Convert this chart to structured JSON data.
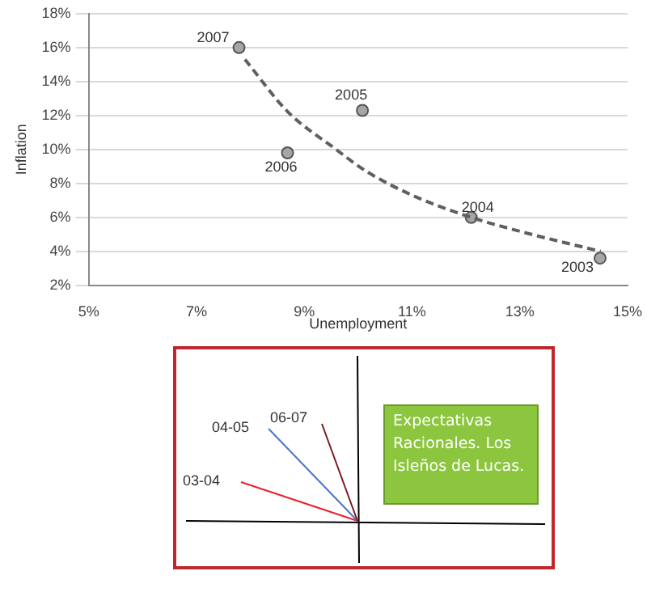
{
  "chart_data": [
    {
      "type": "scatter",
      "xlabel": "Unemployment",
      "ylabel": "Inflation",
      "series": [
        {
          "color": "#a6a6a6",
          "x": [
            7.79,
            8.69,
            10.08,
            12.1,
            14.49
          ],
          "values": [
            16.0,
            9.8,
            12.3,
            6.0,
            3.6
          ],
          "marker": "circle"
        },
        {
          "type": "line",
          "color": "#5f5f5f",
          "line_style": "dashed",
          "marker": "none",
          "x": [
            7.9,
            8.7,
            9.55,
            10.16,
            11.08,
            12.1,
            13.1,
            14.5
          ],
          "values": [
            15.3,
            12.2,
            10.1,
            8.7,
            7.2,
            6.0,
            5.1,
            4.0
          ]
        }
      ],
      "xlim": [
        5,
        15
      ],
      "xticks": [
        {
          "value": 5,
          "label": "5%"
        },
        {
          "value": 7,
          "label": "7%"
        },
        {
          "value": 9,
          "label": "9%"
        },
        {
          "value": 11,
          "label": "11%"
        },
        {
          "value": 13,
          "label": "13%"
        },
        {
          "value": 15,
          "label": "15%"
        }
      ],
      "ylim": [
        2,
        18
      ],
      "yticks": [
        {
          "value": 2,
          "label": "2%"
        },
        {
          "value": 4,
          "label": "4%"
        },
        {
          "value": 6,
          "label": "6%"
        },
        {
          "value": 8,
          "label": "8%"
        },
        {
          "value": 10,
          "label": "10%"
        },
        {
          "value": 12,
          "label": "12%"
        },
        {
          "value": 14,
          "label": "14%"
        },
        {
          "value": 16,
          "label": "16%"
        },
        {
          "value": 18,
          "label": "18%"
        }
      ],
      "grid": "y",
      "legend": false,
      "annotations": [
        {
          "text": "2007",
          "x": 7.79,
          "y": 16.0
        },
        {
          "text": "2006",
          "x": 8.69,
          "y": 9.8
        },
        {
          "text": "2005",
          "x": 10.08,
          "y": 12.3
        },
        {
          "text": "2004",
          "x": 12.1,
          "y": 6.0
        },
        {
          "text": "2003",
          "x": 14.49,
          "y": 3.6
        }
      ]
    },
    {
      "type": "other",
      "annotations": [
        "03-04",
        "04-05",
        "06-07",
        "Expectativas Racionales. Los Isleños de Lucas."
      ]
    }
  ]
}
